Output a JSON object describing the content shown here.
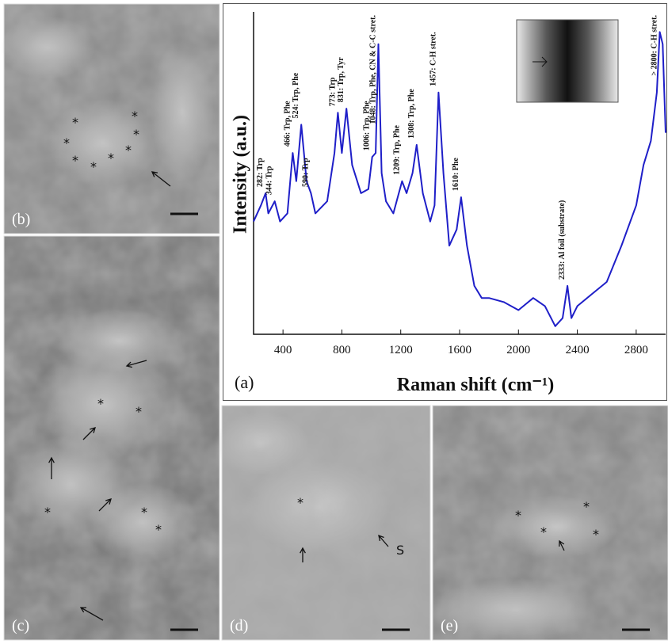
{
  "chart_data": {
    "type": "line",
    "panel_label": "(a)",
    "xlabel": "Raman shift (cm⁻¹)",
    "ylabel": "Intensity (a.u.)",
    "color": "#1f1fc8",
    "x": [
      200,
      250,
      282,
      300,
      344,
      380,
      430,
      466,
      490,
      524,
      560,
      590,
      620,
      700,
      750,
      773,
      800,
      831,
      870,
      930,
      980,
      1006,
      1030,
      1048,
      1070,
      1100,
      1150,
      1209,
      1240,
      1280,
      1308,
      1350,
      1400,
      1430,
      1457,
      1490,
      1530,
      1580,
      1610,
      1650,
      1700,
      1750,
      1800,
      1900,
      2000,
      2100,
      2180,
      2250,
      2300,
      2333,
      2360,
      2400,
      2500,
      2600,
      2700,
      2800,
      2850,
      2900,
      2940,
      2960,
      2980,
      3000
    ],
    "values": [
      28,
      32,
      35,
      30,
      33,
      28,
      30,
      45,
      38,
      52,
      38,
      35,
      30,
      33,
      45,
      55,
      45,
      56,
      42,
      35,
      36,
      44,
      45,
      72,
      40,
      33,
      30,
      38,
      35,
      40,
      47,
      35,
      28,
      32,
      60,
      40,
      22,
      26,
      34,
      22,
      12,
      9,
      9,
      8,
      6,
      9,
      7,
      2,
      4,
      12,
      4,
      7,
      10,
      13,
      22,
      32,
      42,
      48,
      60,
      75,
      72,
      50
    ],
    "xlim": [
      200,
      3000
    ],
    "ylim": [
      0,
      80
    ],
    "xticks": [
      400,
      800,
      1200,
      1600,
      2000,
      2400,
      2800
    ],
    "annotations": [
      {
        "x": 282,
        "text": "282: Trp"
      },
      {
        "x": 344,
        "text": "344: Trp"
      },
      {
        "x": 466,
        "text": "466: Trp, Phe"
      },
      {
        "x": 524,
        "text": "524: Trp, Phe"
      },
      {
        "x": 590,
        "text": "590: Trp"
      },
      {
        "x": 773,
        "text": "773: Trp"
      },
      {
        "x": 831,
        "text": "831: Trp, Tyr"
      },
      {
        "x": 1006,
        "text": "1006: Trp, Phe"
      },
      {
        "x": 1048,
        "text": "1048: Trp, Phe, CN & C-C stret."
      },
      {
        "x": 1209,
        "text": "1209: Trp, Phe"
      },
      {
        "x": 1308,
        "text": "1308: Trp, Phe"
      },
      {
        "x": 1457,
        "text": "1457: C-H stret."
      },
      {
        "x": 1610,
        "text": "1610: Phe"
      },
      {
        "x": 2333,
        "text": "2333: Al foil (substrate)"
      },
      {
        "x": 2960,
        "text": "> 2800: C-H stret."
      }
    ]
  },
  "marker": "*",
  "panels": [
    {
      "label": "(b)"
    },
    {
      "label": "(c)"
    },
    {
      "label": "(d)",
      "note": "S"
    },
    {
      "label": "(e)"
    }
  ]
}
